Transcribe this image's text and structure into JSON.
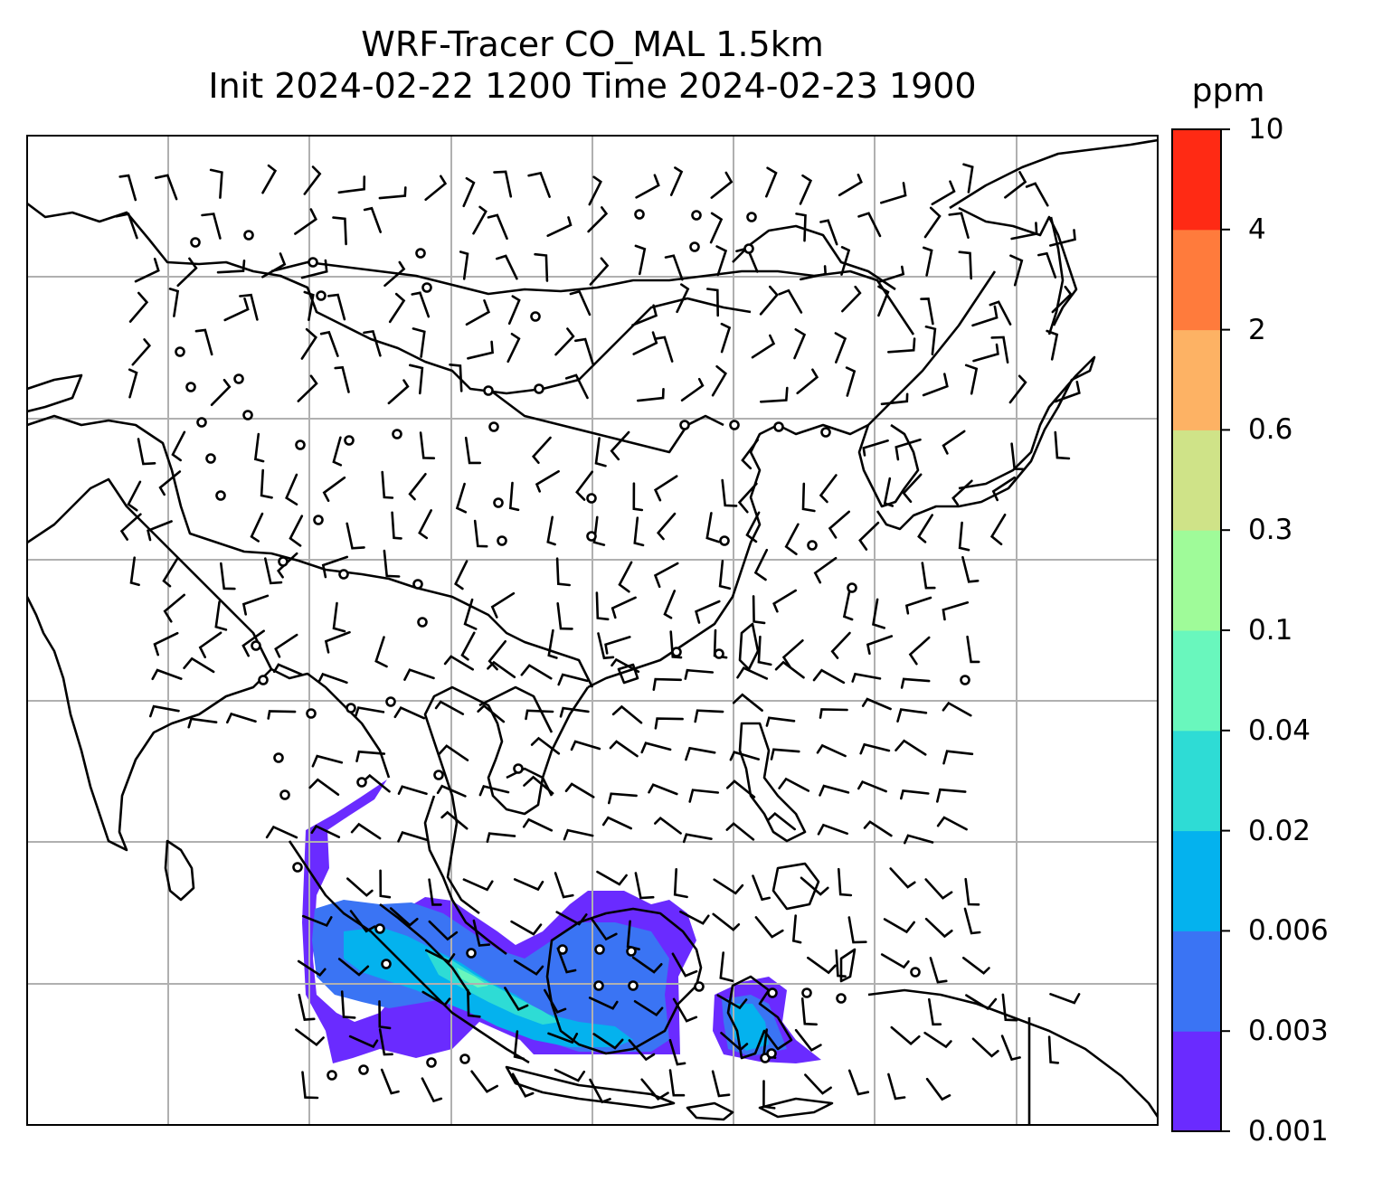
{
  "title_line1": "WRF-Tracer CO_MAL 1.5km",
  "title_line2": "Init 2024-02-22 1200 Time 2024-02-23 1900",
  "colorbar": {
    "unit": "ppm",
    "ticks": [
      "0.001",
      "0.003",
      "0.006",
      "0.02",
      "0.04",
      "0.1",
      "0.3",
      "0.6",
      "2",
      "4",
      "10"
    ],
    "colors": [
      "#6a2bff",
      "#3a74f4",
      "#04b2ee",
      "#2edcd5",
      "#69f7bd",
      "#9ffb99",
      "#cfe388",
      "#fdb264",
      "#ff7b3c",
      "#ff2a14"
    ]
  },
  "map": {
    "grid": "on",
    "tracer_colors": {
      "lowest": "#6a2bff",
      "low": "#3a74f4",
      "mid": "#04b2ee",
      "high": "#2edcd5",
      "peak": "#69f7bd"
    }
  }
}
